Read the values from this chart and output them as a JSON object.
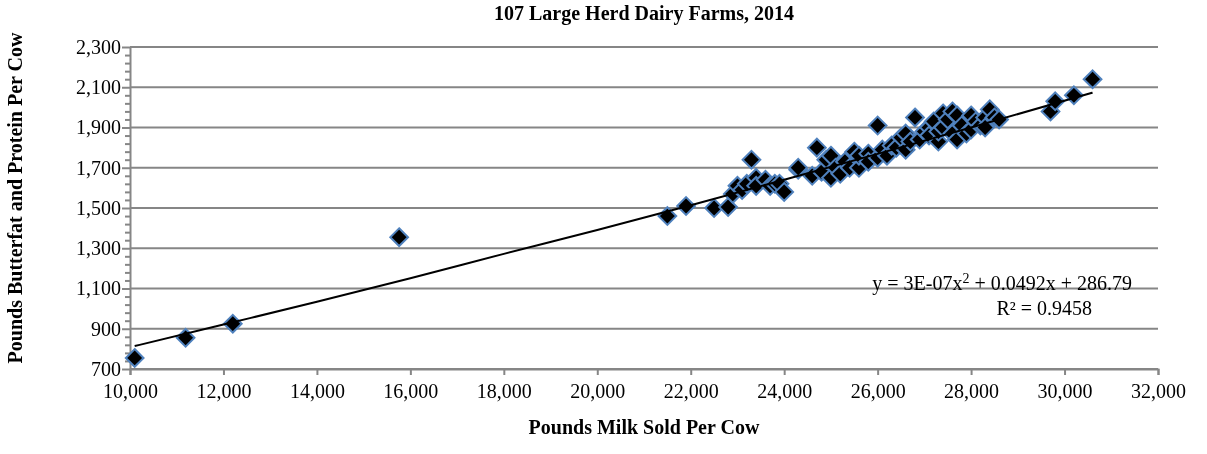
{
  "chart_data": {
    "type": "scatter",
    "title": "107 Large Herd Dairy Farms, 2014",
    "xlabel": "Pounds Milk Sold Per Cow",
    "ylabel": "Pounds Butterfat and Protein Per Cow",
    "xlim": [
      10000,
      32000
    ],
    "ylim": [
      700,
      2300
    ],
    "xticks": [
      {
        "value": 10000,
        "label": "10,000"
      },
      {
        "value": 12000,
        "label": "12,000"
      },
      {
        "value": 14000,
        "label": "14,000"
      },
      {
        "value": 16000,
        "label": "16,000"
      },
      {
        "value": 18000,
        "label": "18,000"
      },
      {
        "value": 20000,
        "label": "20,000"
      },
      {
        "value": 22000,
        "label": "22,000"
      },
      {
        "value": 24000,
        "label": "24,000"
      },
      {
        "value": 26000,
        "label": "26,000"
      },
      {
        "value": 28000,
        "label": "28,000"
      },
      {
        "value": 30000,
        "label": "30,000"
      },
      {
        "value": 32000,
        "label": "32,000"
      }
    ],
    "yticks": [
      700,
      {
        "value": 740,
        "label": null
      },
      {
        "value": 780,
        "label": null
      },
      {
        "value": 820,
        "label": null
      },
      {
        "value": 860,
        "label": null
      },
      900,
      {
        "value": 940,
        "label": null
      },
      {
        "value": 980,
        "label": null
      },
      {
        "value": 1020,
        "label": null
      },
      {
        "value": 1060,
        "label": null
      },
      {
        "value": 1100,
        "label": "1,100"
      },
      {
        "value": 1140,
        "label": null
      },
      {
        "value": 1180,
        "label": null
      },
      {
        "value": 1220,
        "label": null
      },
      {
        "value": 1260,
        "label": null
      },
      {
        "value": 1300,
        "label": "1,300"
      },
      {
        "value": 1340,
        "label": null
      },
      {
        "value": 1380,
        "label": null
      },
      {
        "value": 1420,
        "label": null
      },
      {
        "value": 1460,
        "label": null
      },
      {
        "value": 1500,
        "label": "1,500"
      },
      {
        "value": 1540,
        "label": null
      },
      {
        "value": 1580,
        "label": null
      },
      {
        "value": 1620,
        "label": null
      },
      {
        "value": 1660,
        "label": null
      },
      {
        "value": 1700,
        "label": "1,700"
      },
      {
        "value": 1740,
        "label": null
      },
      {
        "value": 1780,
        "label": null
      },
      {
        "value": 1820,
        "label": null
      },
      {
        "value": 1860,
        "label": null
      },
      {
        "value": 1900,
        "label": "1,900"
      },
      {
        "value": 1940,
        "label": null
      },
      {
        "value": 1980,
        "label": null
      },
      {
        "value": 2020,
        "label": null
      },
      {
        "value": 2060,
        "label": null
      },
      {
        "value": 2100,
        "label": "2,100"
      },
      {
        "value": 2140,
        "label": null
      },
      {
        "value": 2180,
        "label": null
      },
      {
        "value": 2220,
        "label": null
      },
      {
        "value": 2260,
        "label": null
      },
      {
        "value": 2300,
        "label": "2,300"
      }
    ],
    "grid": "y",
    "marker": "diamond",
    "line_style": "solid",
    "annotations": [
      "y = 3E-07x$^{2}$ + 0.0492x + 286.79",
      "R² = 0.9458"
    ],
    "series": [
      {
        "color": "#000000",
        "x": [
          10100,
          11190,
          12200,
          15760,
          21500,
          21900,
          22500,
          22800,
          22900,
          23000,
          23100,
          23300,
          23200,
          23400,
          23400,
          23600,
          23700,
          23800,
          23900,
          24000,
          24300,
          24300,
          24700,
          24600,
          24800,
          24900,
          25000,
          25000,
          25100,
          25200,
          25300,
          25400,
          25500,
          25600,
          25600,
          25800,
          25800,
          26000,
          26000,
          26100,
          26200,
          26300,
          26400,
          26500,
          26600,
          26600,
          26700,
          26800,
          26900,
          27000,
          27100,
          27100,
          27200,
          27300,
          27300,
          27400,
          27400,
          27500,
          27600,
          27600,
          27700,
          27700,
          27800,
          27900,
          28000,
          28000,
          28100,
          28200,
          28300,
          28300,
          28400,
          28500,
          28600,
          29700,
          29800,
          30200,
          30600
        ],
        "values": [
          755,
          855,
          925,
          1355,
          1460,
          1510,
          1500,
          1505,
          1570,
          1610,
          1590,
          1740,
          1620,
          1650,
          1610,
          1640,
          1610,
          1620,
          1620,
          1580,
          1690,
          1700,
          1800,
          1660,
          1680,
          1740,
          1650,
          1760,
          1700,
          1670,
          1730,
          1700,
          1780,
          1700,
          1760,
          1770,
          1730,
          1910,
          1750,
          1790,
          1760,
          1810,
          1800,
          1850,
          1790,
          1870,
          1830,
          1950,
          1840,
          1880,
          1900,
          1860,
          1930,
          1830,
          1880,
          1970,
          1900,
          1940,
          1980,
          1870,
          1960,
          1840,
          1910,
          1870,
          1960,
          1890,
          1930,
          1910,
          1950,
          1900,
          1990,
          1950,
          1940,
          1980,
          2030,
          2060,
          2140
        ]
      },
      {
        "type": "line",
        "marker": "none",
        "color": "#000000",
        "x": [
          10100,
          12000,
          14000,
          16000,
          18000,
          20000,
          22000,
          24000,
          26000,
          28000,
          30600
        ],
        "values": [
          814,
          921,
          1034,
          1151,
          1272,
          1391,
          1514,
          1640,
          1769,
          1900,
          2073
        ]
      }
    ]
  }
}
